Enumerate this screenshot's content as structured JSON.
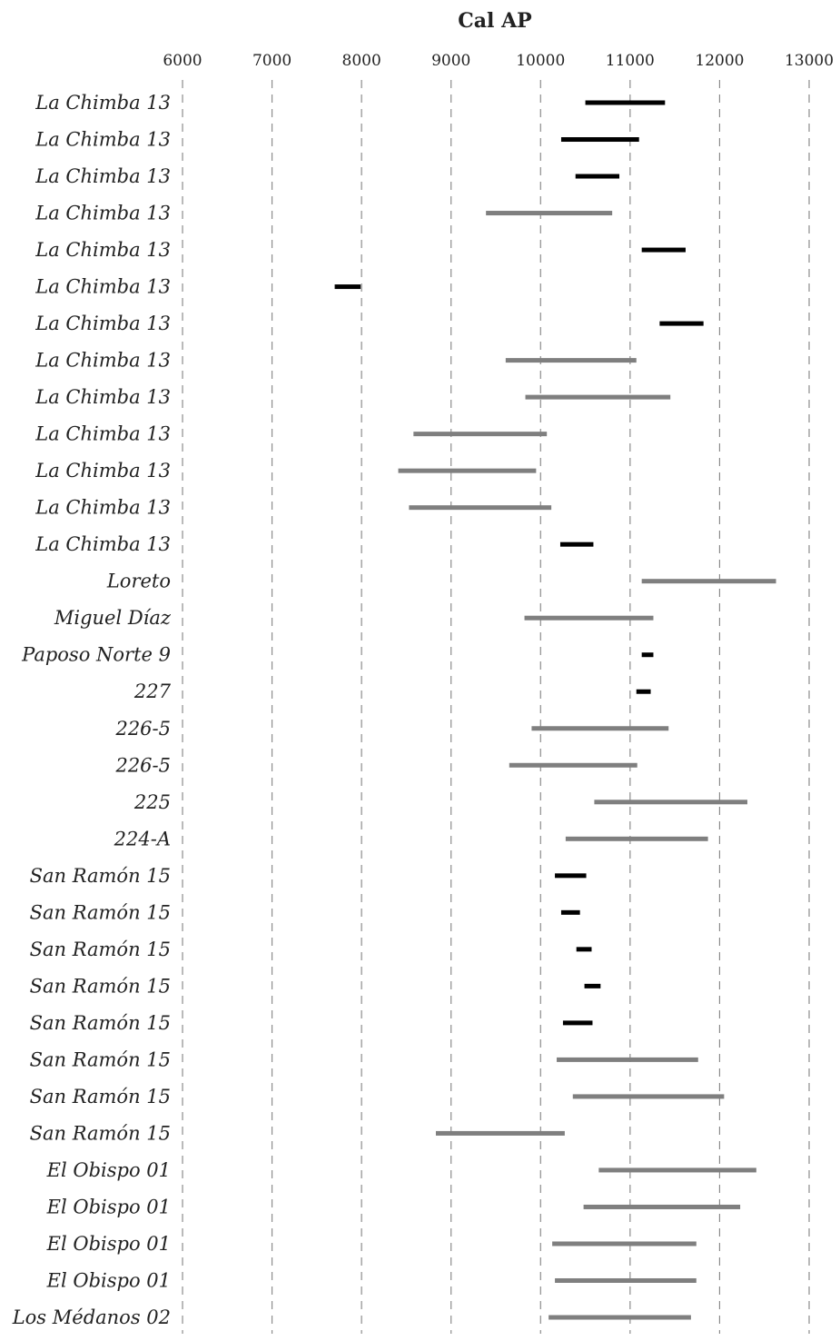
{
  "chart_data": {
    "type": "range-bar",
    "title": "Cal AP",
    "xlabel": "",
    "ylabel": "",
    "xlim": [
      6000,
      13000
    ],
    "x_ticks": [
      6000,
      7000,
      8000,
      9000,
      10000,
      11000,
      12000,
      13000
    ],
    "x_tick_labels": [
      "6000",
      "7000",
      "8000",
      "9000",
      "10000",
      "11000",
      "12000",
      "13000"
    ],
    "axis_position": "top",
    "grid": "vertical dashed",
    "legend": "none",
    "colors": {
      "black": "#000000",
      "gray": "#7f7f7f"
    },
    "rows": [
      {
        "label": "La Chimba 13",
        "start": 10500,
        "end": 11390,
        "color": "black"
      },
      {
        "label": "La Chimba 13",
        "start": 10230,
        "end": 11100,
        "color": "black"
      },
      {
        "label": "La Chimba 13",
        "start": 10390,
        "end": 10880,
        "color": "black"
      },
      {
        "label": "La Chimba 13",
        "start": 9390,
        "end": 10800,
        "color": "gray"
      },
      {
        "label": "La Chimba 13",
        "start": 11130,
        "end": 11620,
        "color": "black"
      },
      {
        "label": "La Chimba 13",
        "start": 7700,
        "end": 7990,
        "color": "black"
      },
      {
        "label": "La Chimba 13",
        "start": 11330,
        "end": 11820,
        "color": "black"
      },
      {
        "label": "La Chimba 13",
        "start": 9610,
        "end": 11070,
        "color": "gray"
      },
      {
        "label": "La Chimba 13",
        "start": 9830,
        "end": 11450,
        "color": "gray"
      },
      {
        "label": "La Chimba 13",
        "start": 8580,
        "end": 10070,
        "color": "gray"
      },
      {
        "label": "La Chimba 13",
        "start": 8410,
        "end": 9950,
        "color": "gray"
      },
      {
        "label": "La Chimba 13",
        "start": 8530,
        "end": 10120,
        "color": "gray"
      },
      {
        "label": "La Chimba 13",
        "start": 10220,
        "end": 10590,
        "color": "black"
      },
      {
        "label": "Loreto",
        "start": 11130,
        "end": 12630,
        "color": "gray"
      },
      {
        "label": "Miguel Díaz",
        "start": 9820,
        "end": 11260,
        "color": "gray"
      },
      {
        "label": "Paposo Norte 9",
        "start": 11130,
        "end": 11260,
        "color": "black"
      },
      {
        "label": "227",
        "start": 11070,
        "end": 11230,
        "color": "black"
      },
      {
        "label": "226-5",
        "start": 9900,
        "end": 11430,
        "color": "gray"
      },
      {
        "label": "226-5",
        "start": 9650,
        "end": 11080,
        "color": "gray"
      },
      {
        "label": "225",
        "start": 10600,
        "end": 12310,
        "color": "gray"
      },
      {
        "label": "224-A",
        "start": 10280,
        "end": 11870,
        "color": "gray"
      },
      {
        "label": "San Ramón 15",
        "start": 10160,
        "end": 10510,
        "color": "black"
      },
      {
        "label": "San Ramón 15",
        "start": 10230,
        "end": 10440,
        "color": "black"
      },
      {
        "label": "San Ramón 15",
        "start": 10400,
        "end": 10570,
        "color": "black"
      },
      {
        "label": "San Ramón 15",
        "start": 10490,
        "end": 10670,
        "color": "black"
      },
      {
        "label": "San Ramón 15",
        "start": 10250,
        "end": 10580,
        "color": "black"
      },
      {
        "label": "San Ramón 15",
        "start": 10180,
        "end": 11760,
        "color": "gray"
      },
      {
        "label": "San Ramón 15",
        "start": 10360,
        "end": 12050,
        "color": "gray"
      },
      {
        "label": "San Ramón 15",
        "start": 8830,
        "end": 10270,
        "color": "gray"
      },
      {
        "label": "El Obispo 01",
        "start": 10650,
        "end": 12410,
        "color": "gray"
      },
      {
        "label": "El Obispo 01",
        "start": 10480,
        "end": 12230,
        "color": "gray"
      },
      {
        "label": "El Obispo 01",
        "start": 10130,
        "end": 11740,
        "color": "gray"
      },
      {
        "label": "El Obispo 01",
        "start": 10160,
        "end": 11740,
        "color": "gray"
      },
      {
        "label": "Los Médanos 02",
        "start": 10090,
        "end": 11680,
        "color": "gray"
      }
    ]
  }
}
